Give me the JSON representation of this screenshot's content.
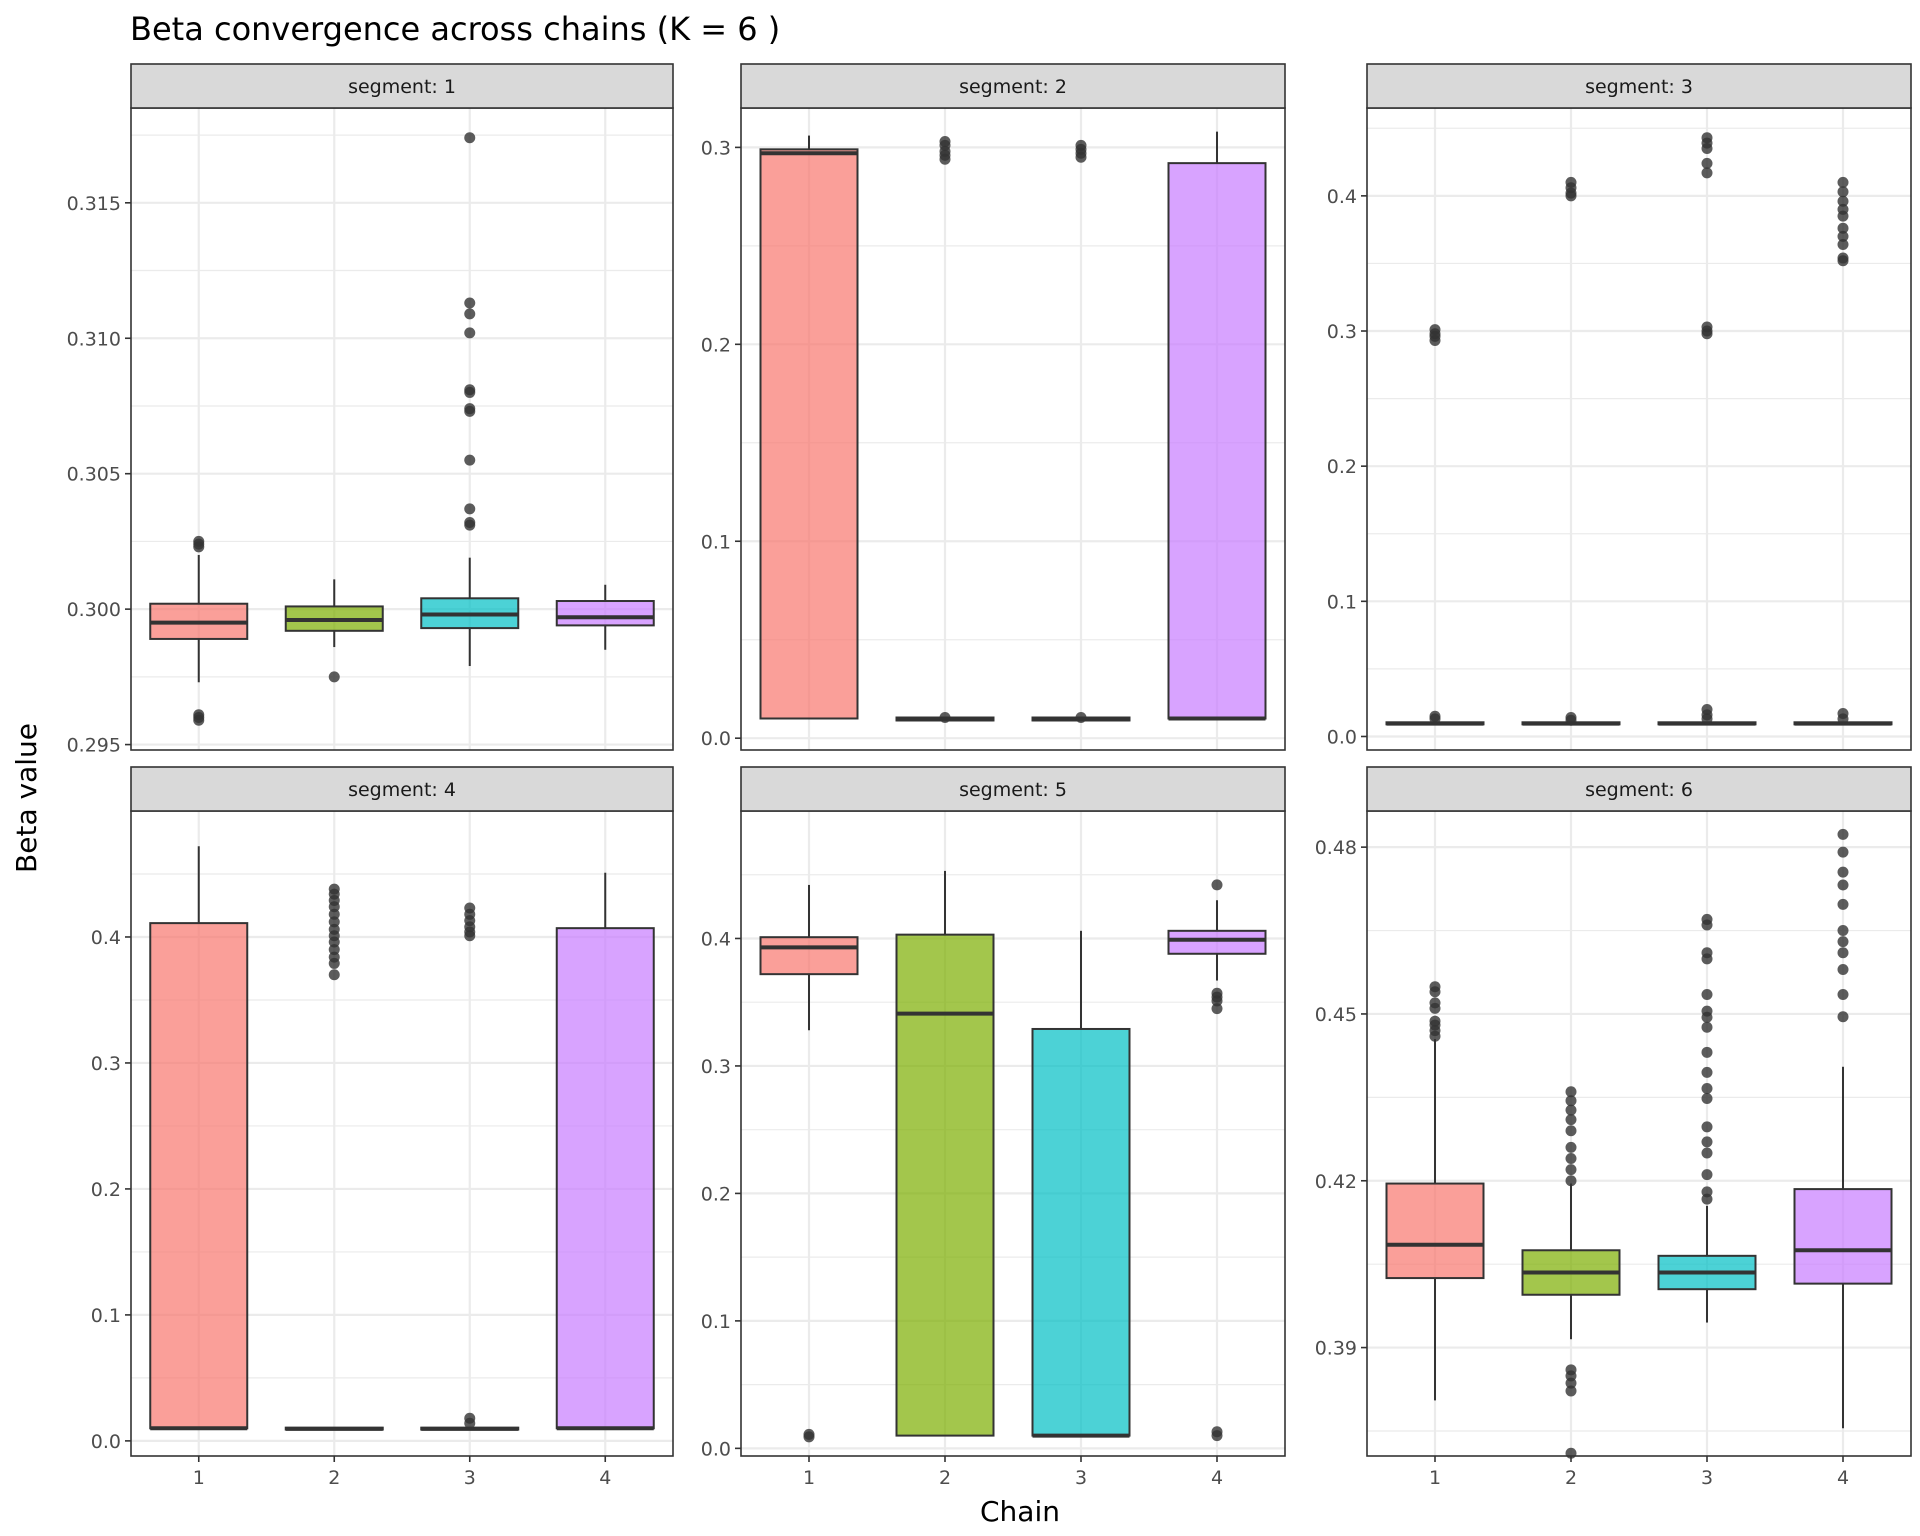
{
  "chart_data": {
    "type": "boxplot",
    "title": "Beta convergence across chains (K = 6 )",
    "xlabel": "Chain",
    "ylabel": "Beta value",
    "categories": [
      "1",
      "2",
      "3",
      "4"
    ],
    "colors": [
      "#F8766D",
      "#7CAE00",
      "#00BFC4",
      "#C77CFF"
    ],
    "grid": true,
    "legend": "none",
    "facets": [
      {
        "label": "segment: 1",
        "ylim": [
          0.2948,
          0.3185
        ],
        "yticks": [
          0.295,
          0.3,
          0.305,
          0.31,
          0.315
        ],
        "ytick_labels": [
          "0.295",
          "0.300",
          "0.305",
          "0.310",
          "0.315"
        ],
        "boxes": [
          {
            "chain": "1",
            "lower": 0.2973,
            "q1": 0.2989,
            "median": 0.2995,
            "q3": 0.3002,
            "upper": 0.302,
            "outliers": [
              0.3025,
              0.3024,
              0.3023,
              0.2961,
              0.296,
              0.2959
            ]
          },
          {
            "chain": "2",
            "lower": 0.2986,
            "q1": 0.2992,
            "median": 0.2996,
            "q3": 0.3001,
            "upper": 0.3011,
            "outliers": [
              0.2975
            ]
          },
          {
            "chain": "3",
            "lower": 0.2979,
            "q1": 0.2993,
            "median": 0.2998,
            "q3": 0.3004,
            "upper": 0.3019,
            "outliers": [
              0.3174,
              0.3113,
              0.3109,
              0.3102,
              0.3081,
              0.308,
              0.3074,
              0.3073,
              0.3055,
              0.3037,
              0.3032,
              0.3031
            ]
          },
          {
            "chain": "4",
            "lower": 0.2985,
            "q1": 0.2994,
            "median": 0.2997,
            "q3": 0.3003,
            "upper": 0.3009,
            "outliers": []
          }
        ]
      },
      {
        "label": "segment: 2",
        "ylim": [
          -0.006,
          0.32
        ],
        "yticks": [
          0.0,
          0.1,
          0.2,
          0.3
        ],
        "ytick_labels": [
          "0.0",
          "0.1",
          "0.2",
          "0.3"
        ],
        "boxes": [
          {
            "chain": "1",
            "lower": 0.01,
            "q1": 0.01,
            "median": 0.297,
            "q3": 0.299,
            "upper": 0.306,
            "outliers": []
          },
          {
            "chain": "2",
            "lower": 0.01,
            "q1": 0.009,
            "median": 0.0095,
            "q3": 0.0105,
            "upper": 0.011,
            "outliers": [
              0.303,
              0.301,
              0.298,
              0.296,
              0.294,
              0.0105
            ]
          },
          {
            "chain": "3",
            "lower": 0.01,
            "q1": 0.009,
            "median": 0.0095,
            "q3": 0.0105,
            "upper": 0.011,
            "outliers": [
              0.301,
              0.299,
              0.297,
              0.295,
              0.0105
            ]
          },
          {
            "chain": "4",
            "lower": 0.01,
            "q1": 0.01,
            "median": 0.01,
            "q3": 0.292,
            "upper": 0.308,
            "outliers": []
          }
        ]
      },
      {
        "label": "segment: 3",
        "ylim": [
          -0.01,
          0.465
        ],
        "yticks": [
          0.0,
          0.1,
          0.2,
          0.3,
          0.4
        ],
        "ytick_labels": [
          "0.0",
          "0.1",
          "0.2",
          "0.3",
          "0.4"
        ],
        "boxes": [
          {
            "chain": "1",
            "lower": 0.009,
            "q1": 0.009,
            "median": 0.0095,
            "q3": 0.0105,
            "upper": 0.011,
            "outliers": [
              0.301,
              0.298,
              0.296,
              0.293,
              0.015,
              0.013
            ]
          },
          {
            "chain": "2",
            "lower": 0.009,
            "q1": 0.009,
            "median": 0.0095,
            "q3": 0.0105,
            "upper": 0.011,
            "outliers": [
              0.41,
              0.406,
              0.402,
              0.4,
              0.014,
              0.012
            ]
          },
          {
            "chain": "3",
            "lower": 0.009,
            "q1": 0.009,
            "median": 0.0095,
            "q3": 0.0105,
            "upper": 0.011,
            "outliers": [
              0.443,
              0.439,
              0.435,
              0.424,
              0.417,
              0.303,
              0.3,
              0.298,
              0.02,
              0.016,
              0.013
            ]
          },
          {
            "chain": "4",
            "lower": 0.009,
            "q1": 0.009,
            "median": 0.0095,
            "q3": 0.0105,
            "upper": 0.011,
            "outliers": [
              0.41,
              0.403,
              0.396,
              0.39,
              0.385,
              0.376,
              0.37,
              0.364,
              0.354,
              0.352,
              0.017,
              0.013
            ]
          }
        ]
      },
      {
        "label": "segment: 4",
        "ylim": [
          -0.012,
          0.5
        ],
        "yticks": [
          0.0,
          0.1,
          0.2,
          0.3,
          0.4
        ],
        "ytick_labels": [
          "0.0",
          "0.1",
          "0.2",
          "0.3",
          "0.4"
        ],
        "boxes": [
          {
            "chain": "1",
            "lower": 0.01,
            "q1": 0.01,
            "median": 0.01,
            "q3": 0.411,
            "upper": 0.472,
            "outliers": []
          },
          {
            "chain": "2",
            "lower": 0.009,
            "q1": 0.009,
            "median": 0.0095,
            "q3": 0.0105,
            "upper": 0.011,
            "outliers": [
              0.438,
              0.434,
              0.429,
              0.424,
              0.418,
              0.412,
              0.406,
              0.401,
              0.396,
              0.39,
              0.384,
              0.379,
              0.37
            ]
          },
          {
            "chain": "3",
            "lower": 0.009,
            "q1": 0.009,
            "median": 0.0095,
            "q3": 0.0105,
            "upper": 0.011,
            "outliers": [
              0.423,
              0.418,
              0.413,
              0.408,
              0.404,
              0.401,
              0.018,
              0.014
            ]
          },
          {
            "chain": "4",
            "lower": 0.01,
            "q1": 0.01,
            "median": 0.01,
            "q3": 0.407,
            "upper": 0.451,
            "outliers": []
          }
        ]
      },
      {
        "label": "segment: 5",
        "ylim": [
          -0.006,
          0.5
        ],
        "yticks": [
          0.0,
          0.1,
          0.2,
          0.3,
          0.4
        ],
        "ytick_labels": [
          "0.0",
          "0.1",
          "0.2",
          "0.3",
          "0.4"
        ],
        "boxes": [
          {
            "chain": "1",
            "lower": 0.328,
            "q1": 0.372,
            "median": 0.393,
            "q3": 0.401,
            "upper": 0.442,
            "outliers": [
              0.011,
              0.009
            ]
          },
          {
            "chain": "2",
            "lower": 0.01,
            "q1": 0.01,
            "median": 0.341,
            "q3": 0.403,
            "upper": 0.453,
            "outliers": []
          },
          {
            "chain": "3",
            "lower": 0.01,
            "q1": 0.01,
            "median": 0.01,
            "q3": 0.329,
            "upper": 0.406,
            "outliers": []
          },
          {
            "chain": "4",
            "lower": 0.367,
            "q1": 0.388,
            "median": 0.399,
            "q3": 0.406,
            "upper": 0.43,
            "outliers": [
              0.442,
              0.357,
              0.354,
              0.351,
              0.345,
              0.013,
              0.01
            ]
          }
        ]
      },
      {
        "label": "segment: 6",
        "ylim": [
          0.3705,
          0.4865
        ],
        "yticks": [
          0.39,
          0.42,
          0.45,
          0.48
        ],
        "ytick_labels": [
          "0.39",
          "0.42",
          "0.45",
          "0.48"
        ],
        "boxes": [
          {
            "chain": "1",
            "lower": 0.3805,
            "q1": 0.4025,
            "median": 0.4085,
            "q3": 0.4195,
            "upper": 0.4455,
            "outliers": [
              0.4549,
              0.454,
              0.452,
              0.451,
              0.4487,
              0.448,
              0.447,
              0.446
            ]
          },
          {
            "chain": "2",
            "lower": 0.3915,
            "q1": 0.3995,
            "median": 0.4035,
            "q3": 0.4075,
            "upper": 0.4195,
            "outliers": [
              0.436,
              0.4344,
              0.4327,
              0.431,
              0.429,
              0.426,
              0.424,
              0.422,
              0.42,
              0.386,
              0.3849,
              0.3836,
              0.3822,
              0.371
            ]
          },
          {
            "chain": "3",
            "lower": 0.3945,
            "q1": 0.4005,
            "median": 0.4035,
            "q3": 0.4065,
            "upper": 0.4155,
            "outliers": [
              0.467,
              0.466,
              0.461,
              0.4599,
              0.4535,
              0.4505,
              0.4494,
              0.4476,
              0.4431,
              0.4395,
              0.4366,
              0.4348,
              0.4297,
              0.427,
              0.425,
              0.4211,
              0.418,
              0.4167
            ]
          },
          {
            "chain": "4",
            "lower": 0.3755,
            "q1": 0.4015,
            "median": 0.4075,
            "q3": 0.4185,
            "upper": 0.4405,
            "outliers": [
              0.4823,
              0.4791,
              0.4755,
              0.4732,
              0.4697,
              0.465,
              0.463,
              0.461,
              0.458,
              0.4535,
              0.4495
            ]
          }
        ]
      }
    ]
  }
}
